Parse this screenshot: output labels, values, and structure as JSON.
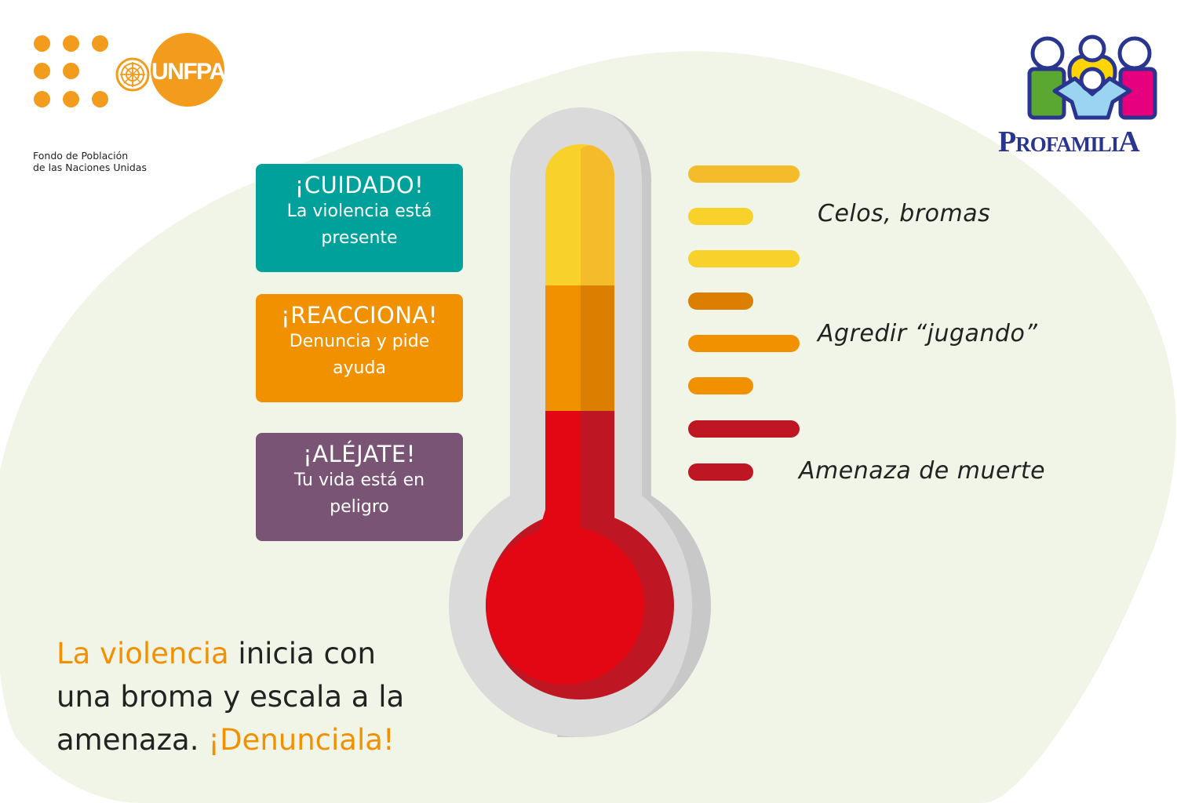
{
  "colors": {
    "background_blob": "#f1f5e8",
    "teal": "#00a19a",
    "orange": "#f29100",
    "purple": "#7a5474",
    "yellow": "#f8d22a",
    "red": "#e30613",
    "dark_red": "#be1622",
    "glass": "#d9d9d9"
  },
  "unfpa": {
    "wordmark": "UNFPA",
    "subtitle_line1": "Fondo de Población",
    "subtitle_line2": "de las Naciones Unidas"
  },
  "profamilia": {
    "wordmark_p": "P",
    "wordmark_rofamili": "ROFAMILI",
    "wordmark_a": "A"
  },
  "alerts": [
    {
      "title": "¡CUIDADO!",
      "line1": "La violencia está",
      "line2": "presente",
      "color": "teal"
    },
    {
      "title": "¡REACCIONA!",
      "line1": "Denuncia y pide",
      "line2": "ayuda",
      "color": "orange"
    },
    {
      "title": "¡ALÉJATE!",
      "line1": "Tu vida está en",
      "line2": "peligro",
      "color": "purple"
    }
  ],
  "scale_labels": [
    "Celos, bromas",
    "Agredir “jugando”",
    "Amenaza de muerte"
  ],
  "message": {
    "accent1": "La violencia",
    "part1": " inicia con",
    "line2": "una broma y escala a la",
    "part3": "amenaza. ",
    "accent2": "¡Denunciala!"
  }
}
